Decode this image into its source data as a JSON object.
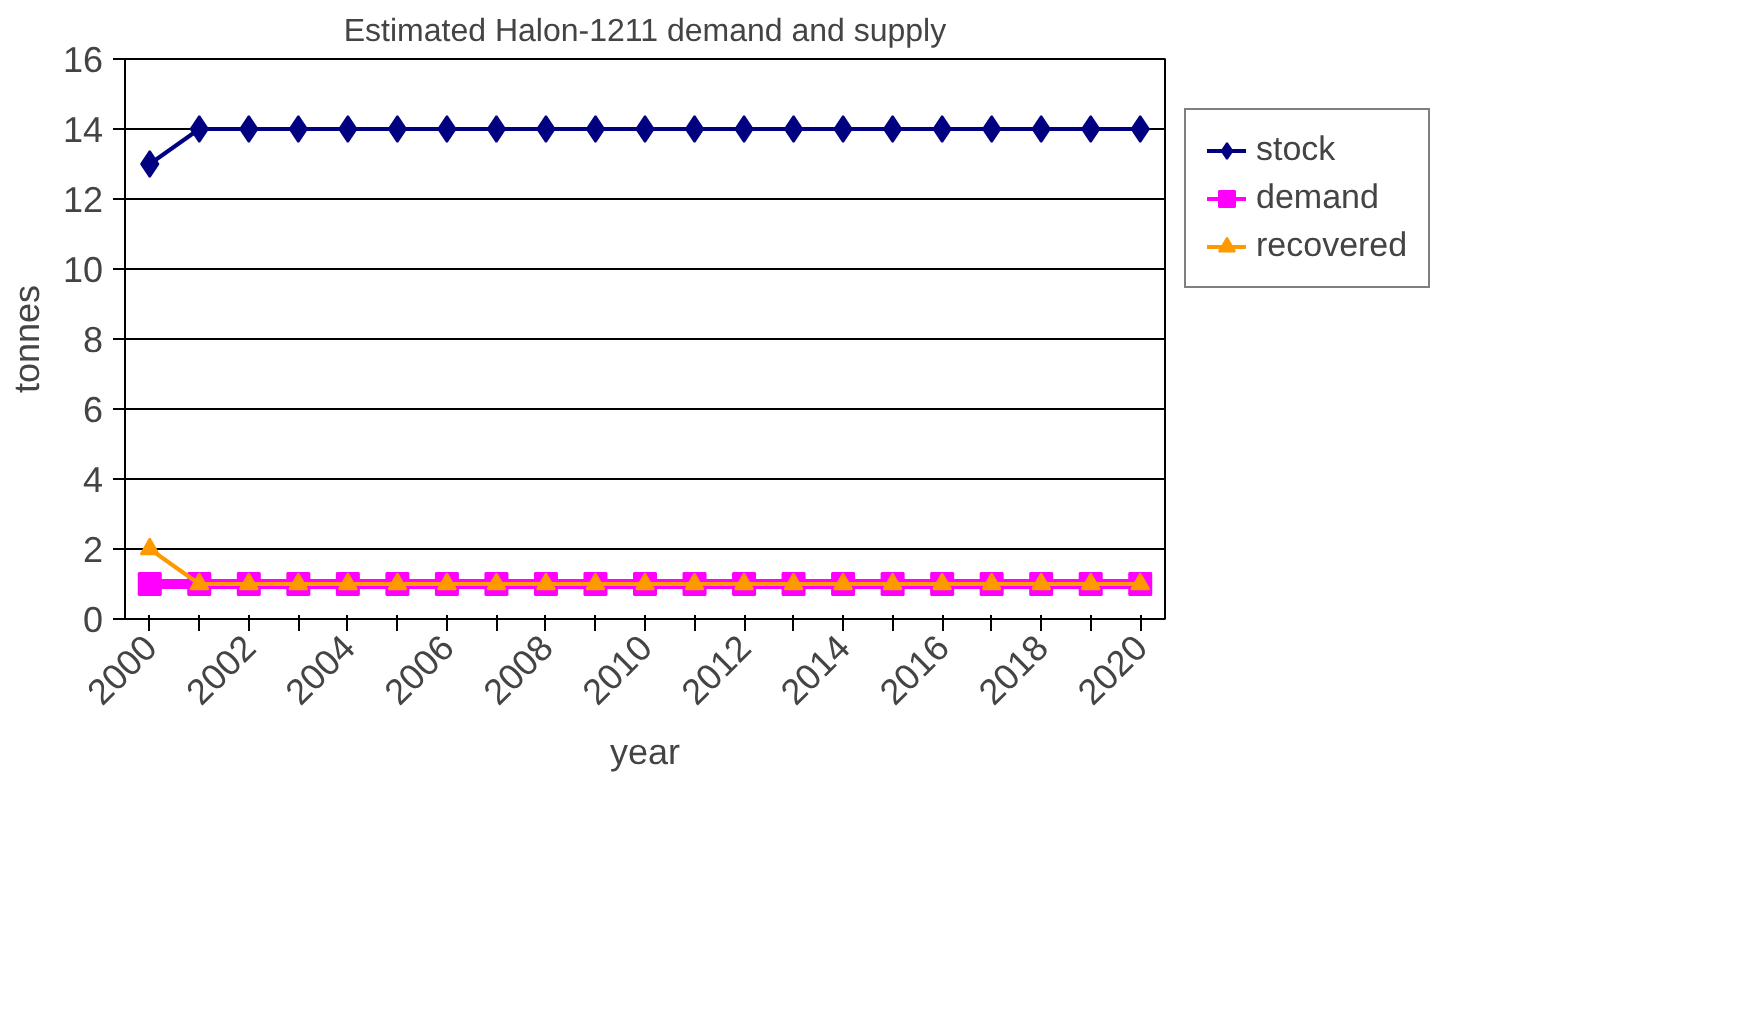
{
  "chart_data": {
    "type": "line",
    "title": "Estimated Halon-1211 demand and supply",
    "xlabel": "year",
    "ylabel": "tonnes",
    "categories": [
      "2000",
      null,
      "2002",
      null,
      "2004",
      null,
      "2006",
      null,
      "2008",
      null,
      "2010",
      null,
      "2012",
      null,
      "2014",
      null,
      "2016",
      null,
      "2018",
      null,
      "2020"
    ],
    "series": [
      {
        "name": "stock",
        "color": "#000080",
        "marker": "diamond",
        "values": [
          13,
          14,
          14,
          14,
          14,
          14,
          14,
          14,
          14,
          14,
          14,
          14,
          14,
          14,
          14,
          14,
          14,
          14,
          14,
          14,
          14
        ]
      },
      {
        "name": "demand",
        "color": "#ff00ff",
        "marker": "square",
        "values": [
          1,
          1,
          1,
          1,
          1,
          1,
          1,
          1,
          1,
          1,
          1,
          1,
          1,
          1,
          1,
          1,
          1,
          1,
          1,
          1,
          1
        ]
      },
      {
        "name": "recovered",
        "color": "#ff9900",
        "marker": "triangle",
        "values": [
          2,
          1,
          1,
          1,
          1,
          1,
          1,
          1,
          1,
          1,
          1,
          1,
          1,
          1,
          1,
          1,
          1,
          1,
          1,
          1,
          1
        ]
      }
    ],
    "ylim": [
      0,
      16
    ],
    "yticks": [
      0,
      2,
      4,
      6,
      8,
      10,
      12,
      14,
      16
    ],
    "grid": "y",
    "legend": "right",
    "line_style": "solid"
  }
}
